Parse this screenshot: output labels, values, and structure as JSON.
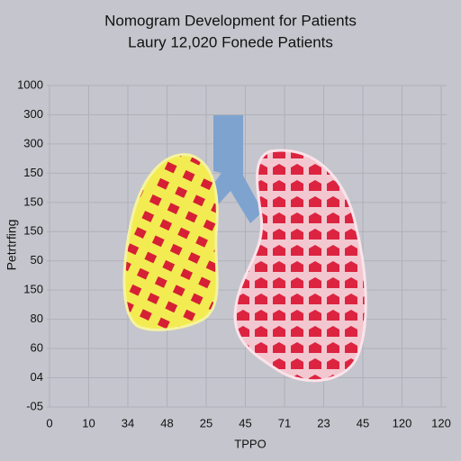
{
  "header": {
    "title": "Nomogram Development for Patients",
    "subtitle": "Laury 12,020 Fonede Patients"
  },
  "axes": {
    "y_title": "Petrtrfing",
    "x_title": "TPPO",
    "y_labels": [
      "1000",
      "300",
      "300",
      "150",
      "150",
      "150",
      "50",
      "150",
      "80",
      "60",
      "04",
      "-05"
    ],
    "x_labels": [
      "0",
      "10",
      "34",
      "48",
      "25",
      "45",
      "71",
      "23",
      "45",
      "120",
      "120"
    ]
  }
}
